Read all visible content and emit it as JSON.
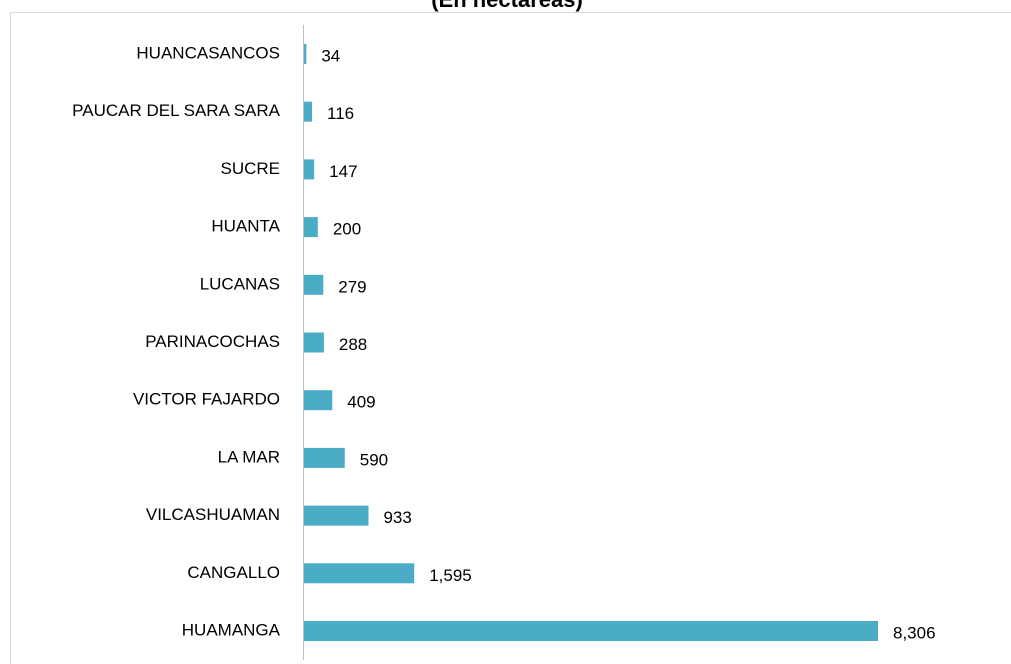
{
  "chart_data": {
    "type": "barh",
    "title": "(En hectáreas)",
    "categories": [
      "HUANCASANCOS",
      "PAUCAR DEL SARA SARA",
      "SUCRE",
      "HUANTA",
      "LUCANAS",
      "PARINACOCHAS",
      "VICTOR FAJARDO",
      "LA MAR",
      "VILCASHUAMAN",
      "CANGALLO",
      "HUAMANGA"
    ],
    "values": [
      34,
      116,
      147,
      200,
      279,
      288,
      409,
      590,
      933,
      1595,
      8306
    ],
    "value_labels": [
      "34",
      "116",
      "147",
      "200",
      "279",
      "288",
      "409",
      "590",
      "933",
      "1,595",
      "8,306"
    ],
    "color": "#4bacc6"
  }
}
